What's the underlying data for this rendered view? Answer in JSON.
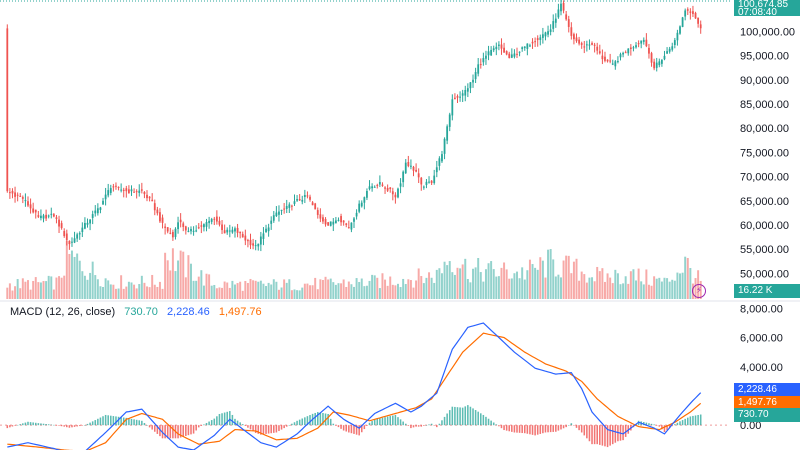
{
  "chart_data": [
    {
      "type": "candlestick",
      "panel": "price",
      "y_ticks": [
        "100,000.00",
        "95,000.00",
        "90,000.00",
        "85,000.00",
        "80,000.00",
        "75,000.00",
        "70,000.00",
        "65,000.00",
        "60,000.00",
        "55,000.00",
        "50,000.00"
      ],
      "y_tick_values": [
        100000,
        95000,
        90000,
        85000,
        80000,
        75000,
        70000,
        65000,
        60000,
        55000,
        50000
      ],
      "ylim": [
        44500,
        106500
      ],
      "last_price_label": "100,674.85",
      "countdown_label": "07:08:40",
      "volume_label": "16.22 K",
      "up_color": "#26a69a",
      "down_color": "#ef5350",
      "close_anchors": [
        [
          0,
          67000
        ],
        [
          6,
          65500
        ],
        [
          12,
          61500
        ],
        [
          18,
          62000
        ],
        [
          24,
          56000
        ],
        [
          30,
          60000
        ],
        [
          36,
          64000
        ],
        [
          40,
          68000
        ],
        [
          46,
          67000
        ],
        [
          52,
          67000
        ],
        [
          56,
          64500
        ],
        [
          60,
          60000
        ],
        [
          64,
          57500
        ],
        [
          66,
          61000
        ],
        [
          70,
          58500
        ],
        [
          76,
          60000
        ],
        [
          80,
          61500
        ],
        [
          84,
          58500
        ],
        [
          88,
          59000
        ],
        [
          92,
          57000
        ],
        [
          96,
          55500
        ],
        [
          100,
          59000
        ],
        [
          104,
          62500
        ],
        [
          108,
          63500
        ],
        [
          112,
          65000
        ],
        [
          116,
          66000
        ],
        [
          120,
          62000
        ],
        [
          124,
          60000
        ],
        [
          128,
          61500
        ],
        [
          132,
          59500
        ],
        [
          136,
          64000
        ],
        [
          140,
          68000
        ],
        [
          144,
          68500
        ],
        [
          148,
          67000
        ],
        [
          150,
          66000
        ],
        [
          152,
          69000
        ],
        [
          154,
          73000
        ],
        [
          158,
          71000
        ],
        [
          160,
          68000
        ],
        [
          164,
          69000
        ],
        [
          168,
          75000
        ],
        [
          170,
          80000
        ],
        [
          172,
          86000
        ],
        [
          176,
          87000
        ],
        [
          180,
          90000
        ],
        [
          182,
          93000
        ],
        [
          186,
          95500
        ],
        [
          190,
          97000
        ],
        [
          194,
          94500
        ],
        [
          198,
          96000
        ],
        [
          202,
          97500
        ],
        [
          206,
          99000
        ],
        [
          210,
          100500
        ],
        [
          214,
          105500
        ],
        [
          218,
          99000
        ],
        [
          222,
          97000
        ],
        [
          226,
          97500
        ],
        [
          230,
          94500
        ],
        [
          234,
          93000
        ],
        [
          238,
          95500
        ],
        [
          242,
          97000
        ],
        [
          246,
          98500
        ],
        [
          250,
          92500
        ],
        [
          254,
          95000
        ],
        [
          258,
          98000
        ],
        [
          262,
          104500
        ],
        [
          265,
          104000
        ],
        [
          268,
          100674
        ]
      ],
      "volume_anchors": [
        [
          0,
          0.3
        ],
        [
          20,
          0.35
        ],
        [
          23,
          0.9
        ],
        [
          40,
          0.35
        ],
        [
          60,
          0.35
        ],
        [
          61,
          0.95
        ],
        [
          80,
          0.3
        ],
        [
          110,
          0.3
        ],
        [
          140,
          0.35
        ],
        [
          160,
          0.45
        ],
        [
          166,
          0.5
        ],
        [
          170,
          0.85
        ],
        [
          175,
          0.8
        ],
        [
          178,
          0.6
        ],
        [
          200,
          0.55
        ],
        [
          210,
          0.75
        ],
        [
          230,
          0.45
        ],
        [
          240,
          0.5
        ],
        [
          255,
          0.35
        ],
        [
          262,
          0.75
        ],
        [
          268,
          0.35
        ]
      ]
    },
    {
      "type": "line",
      "panel": "macd",
      "legend_name": "MACD (12, 26, close)",
      "legend_values": [
        "730.70",
        "2,228.46",
        "1,497.76"
      ],
      "series": [
        {
          "name": "MACD",
          "color": "#2962ff",
          "badge": "2,228.46",
          "anchors": [
            [
              0,
              -1500
            ],
            [
              8,
              -1200
            ],
            [
              18,
              -1600
            ],
            [
              24,
              -1900
            ],
            [
              30,
              -1800
            ],
            [
              38,
              -500
            ],
            [
              46,
              900
            ],
            [
              52,
              1100
            ],
            [
              60,
              -500
            ],
            [
              66,
              -1500
            ],
            [
              72,
              -1700
            ],
            [
              80,
              -700
            ],
            [
              86,
              400
            ],
            [
              92,
              -400
            ],
            [
              98,
              -1200
            ],
            [
              104,
              -1500
            ],
            [
              112,
              -600
            ],
            [
              118,
              400
            ],
            [
              124,
              1300
            ],
            [
              130,
              400
            ],
            [
              136,
              -200
            ],
            [
              142,
              800
            ],
            [
              150,
              1500
            ],
            [
              156,
              900
            ],
            [
              160,
              1300
            ],
            [
              166,
              2200
            ],
            [
              172,
              5200
            ],
            [
              178,
              6700
            ],
            [
              184,
              7000
            ],
            [
              190,
              6000
            ],
            [
              196,
              5000
            ],
            [
              204,
              3900
            ],
            [
              212,
              3500
            ],
            [
              218,
              3600
            ],
            [
              222,
              2500
            ],
            [
              226,
              900
            ],
            [
              232,
              -300
            ],
            [
              238,
              -600
            ],
            [
              244,
              200
            ],
            [
              250,
              -200
            ],
            [
              254,
              -600
            ],
            [
              260,
              700
            ],
            [
              264,
              1500
            ],
            [
              268,
              2228
            ]
          ]
        },
        {
          "name": "Signal",
          "color": "#ff6d00",
          "badge": "1,497.76",
          "anchors": [
            [
              0,
              -1300
            ],
            [
              12,
              -1500
            ],
            [
              22,
              -1700
            ],
            [
              30,
              -1800
            ],
            [
              38,
              -1200
            ],
            [
              46,
              400
            ],
            [
              52,
              800
            ],
            [
              60,
              400
            ],
            [
              66,
              -600
            ],
            [
              74,
              -1300
            ],
            [
              82,
              -1100
            ],
            [
              88,
              -300
            ],
            [
              96,
              -400
            ],
            [
              104,
              -1000
            ],
            [
              112,
              -900
            ],
            [
              120,
              -200
            ],
            [
              126,
              900
            ],
            [
              132,
              700
            ],
            [
              140,
              300
            ],
            [
              150,
              800
            ],
            [
              158,
              1200
            ],
            [
              164,
              1800
            ],
            [
              170,
              3400
            ],
            [
              176,
              5000
            ],
            [
              184,
              6300
            ],
            [
              192,
              6000
            ],
            [
              200,
              5000
            ],
            [
              208,
              4200
            ],
            [
              216,
              3700
            ],
            [
              222,
              3000
            ],
            [
              228,
              1800
            ],
            [
              236,
              600
            ],
            [
              244,
              -100
            ],
            [
              252,
              -300
            ],
            [
              258,
              200
            ],
            [
              264,
              900
            ],
            [
              268,
              1497
            ]
          ]
        }
      ],
      "histogram": {
        "name": "Histogram",
        "badge": "730.70",
        "positive_color": "#26a69a",
        "negative_color": "#ef5350"
      },
      "y_ticks": [
        "8,000.00",
        "6,000.00",
        "4,000.00",
        "0.00"
      ],
      "y_tick_values": [
        8000,
        6000,
        4000,
        0
      ],
      "ylim": [
        -1700,
        8300
      ]
    }
  ],
  "colors": {
    "macd_value": "#26a69a",
    "signal_value": "#2962ff",
    "histogram_value": "#ff6d00"
  }
}
